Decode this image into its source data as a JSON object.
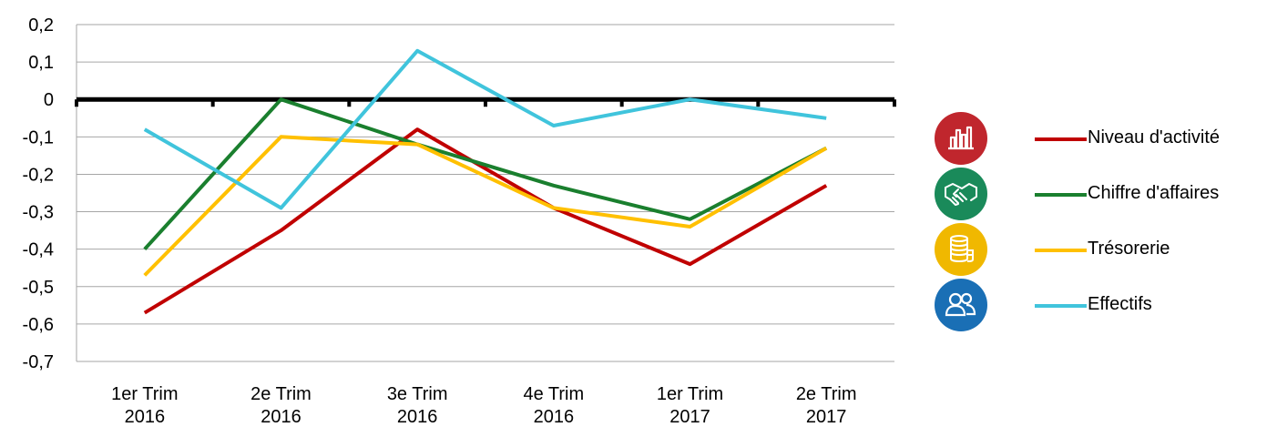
{
  "chart_data": {
    "type": "line",
    "categories": [
      [
        "1er Trim",
        "2016"
      ],
      [
        "2e Trim",
        "2016"
      ],
      [
        "3e Trim",
        "2016"
      ],
      [
        "4e Trim",
        "2016"
      ],
      [
        "1er Trim",
        "2017"
      ],
      [
        "2e Trim",
        "2017"
      ]
    ],
    "ylim": [
      -0.7,
      0.2
    ],
    "yticks": [
      0.2,
      0.1,
      0,
      -0.1,
      -0.2,
      -0.3,
      -0.4,
      -0.5,
      -0.6,
      -0.7
    ],
    "ytick_labels": [
      "0,2",
      "0,1",
      "0",
      "-0,1",
      "-0,2",
      "-0,3",
      "-0,4",
      "-0,5",
      "-0,6",
      "-0,7"
    ],
    "grid": true,
    "legend_position": "right",
    "series": [
      {
        "name": "Niveau d'activité",
        "color": "#c00000",
        "icon": "bar-chart-icon",
        "values": [
          -0.57,
          -0.35,
          -0.08,
          -0.29,
          -0.44,
          -0.23
        ]
      },
      {
        "name": "Chiffre d'affaires",
        "color": "#1a7f2e",
        "icon": "handshake-icon",
        "values": [
          -0.4,
          0.0,
          -0.12,
          -0.23,
          -0.32,
          -0.13
        ]
      },
      {
        "name": "Trésorerie",
        "color": "#ffc000",
        "icon": "coins-icon",
        "values": [
          -0.47,
          -0.1,
          -0.12,
          -0.29,
          -0.34,
          -0.13
        ]
      },
      {
        "name": "Effectifs",
        "color": "#40c4dc",
        "icon": "people-icon",
        "values": [
          -0.08,
          -0.29,
          0.13,
          -0.07,
          0.0,
          -0.05
        ]
      }
    ]
  },
  "legend_icon_colors": [
    "#c0262d",
    "#1a8a5a",
    "#f0b800",
    "#1a6fb5"
  ]
}
